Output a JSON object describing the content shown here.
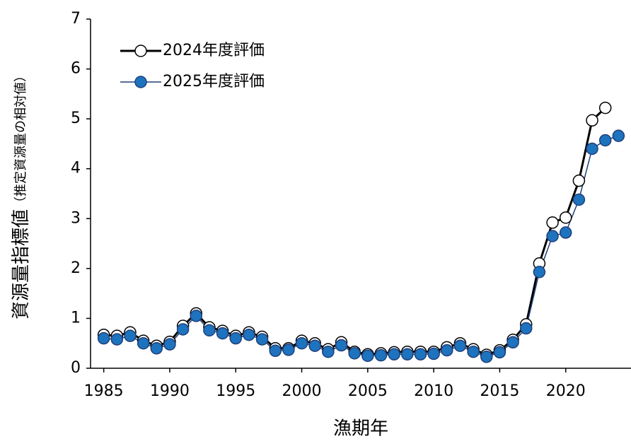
{
  "chart_data": {
    "type": "line",
    "ylabel": "資源量指標値",
    "ylabel_sub": "（推定資源量の相対値）",
    "xlabel": "漁期年",
    "x": [
      1985,
      1986,
      1987,
      1988,
      1989,
      1990,
      1991,
      1992,
      1993,
      1994,
      1995,
      1996,
      1997,
      1998,
      1999,
      2000,
      2001,
      2002,
      2003,
      2004,
      2005,
      2006,
      2007,
      2008,
      2009,
      2010,
      2011,
      2012,
      2013,
      2014,
      2015,
      2016,
      2017,
      2018,
      2019,
      2020,
      2021,
      2022,
      2023,
      2024
    ],
    "series": [
      {
        "name": "2024年度評価",
        "color": "#000000",
        "marker_fill": "#ffffff",
        "values": [
          0.67,
          0.65,
          0.72,
          0.55,
          0.45,
          0.53,
          0.85,
          1.1,
          0.82,
          0.75,
          0.65,
          0.72,
          0.63,
          0.4,
          0.4,
          0.55,
          0.5,
          0.38,
          0.52,
          0.33,
          0.28,
          0.3,
          0.32,
          0.33,
          0.33,
          0.33,
          0.42,
          0.5,
          0.38,
          0.27,
          0.36,
          0.57,
          0.88,
          2.1,
          2.92,
          3.02,
          3.76,
          4.97,
          5.22,
          null
        ]
      },
      {
        "name": "2025年度評価",
        "color": "#1f3f7a",
        "marker_fill": "#1e73be",
        "values": [
          0.6,
          0.58,
          0.65,
          0.5,
          0.4,
          0.48,
          0.78,
          1.05,
          0.76,
          0.7,
          0.6,
          0.67,
          0.58,
          0.35,
          0.37,
          0.5,
          0.45,
          0.33,
          0.46,
          0.3,
          0.25,
          0.26,
          0.28,
          0.28,
          0.28,
          0.29,
          0.36,
          0.45,
          0.33,
          0.23,
          0.32,
          0.52,
          0.8,
          1.93,
          2.65,
          2.72,
          3.38,
          4.4,
          4.57,
          4.66
        ]
      }
    ],
    "xlim": [
      1984,
      2025
    ],
    "xticks": [
      1985,
      1990,
      1995,
      2000,
      2005,
      2010,
      2015,
      2020
    ],
    "ylim": [
      0,
      7
    ],
    "yticks": [
      0,
      1,
      2,
      3,
      4,
      5,
      6,
      7
    ],
    "legend": "upper left",
    "grid": false
  }
}
